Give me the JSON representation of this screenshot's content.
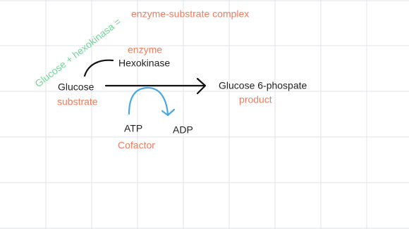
{
  "annotation": {
    "equation": "Glucose + hexokinasa =",
    "complex": "enzyme-substrate complex"
  },
  "enzyme": {
    "role": "enzyme",
    "name": "Hexokinase"
  },
  "substrate": {
    "name": "Glucose",
    "role": "substrate"
  },
  "product": {
    "name": "Glucose 6-phospate",
    "role": "product"
  },
  "cofactor": {
    "name": "ATP",
    "role": "Cofactor",
    "output": "ADP"
  }
}
